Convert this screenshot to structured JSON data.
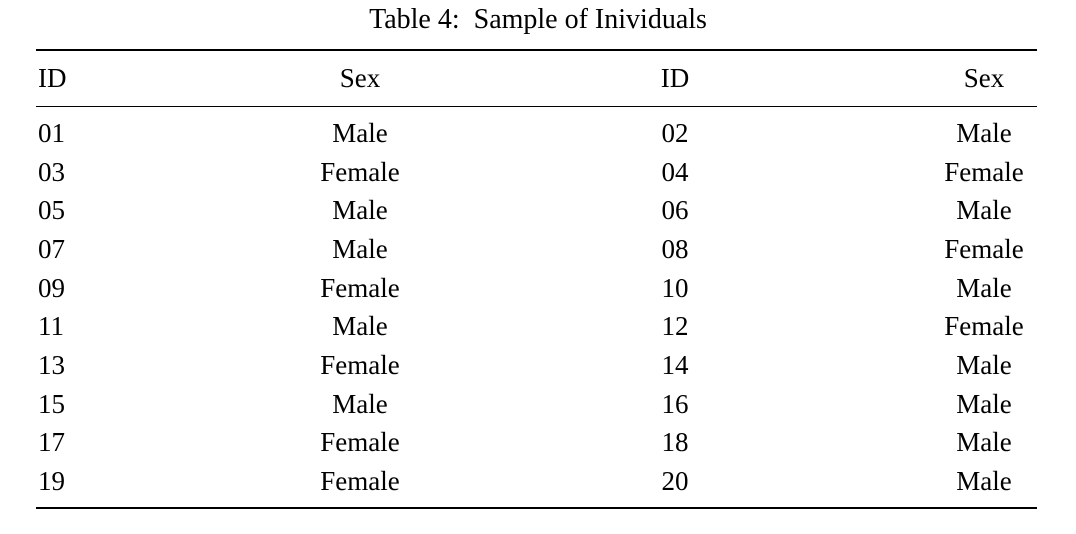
{
  "caption": {
    "label": "Table 4:",
    "title": "Sample of Inividuals"
  },
  "table": {
    "columns": [
      "ID",
      "Sex",
      "ID",
      "Sex"
    ],
    "rows": [
      [
        "01",
        "Male",
        "02",
        "Male"
      ],
      [
        "03",
        "Female",
        "04",
        "Female"
      ],
      [
        "05",
        "Male",
        "06",
        "Male"
      ],
      [
        "07",
        "Male",
        "08",
        "Female"
      ],
      [
        "09",
        "Female",
        "10",
        "Male"
      ],
      [
        "11",
        "Male",
        "12",
        "Female"
      ],
      [
        "13",
        "Female",
        "14",
        "Male"
      ],
      [
        "15",
        "Male",
        "16",
        "Male"
      ],
      [
        "17",
        "Female",
        "18",
        "Male"
      ],
      [
        "19",
        "Female",
        "20",
        "Male"
      ]
    ]
  },
  "colors": {
    "text": "#000000",
    "background": "#ffffff",
    "rule": "#000000"
  }
}
